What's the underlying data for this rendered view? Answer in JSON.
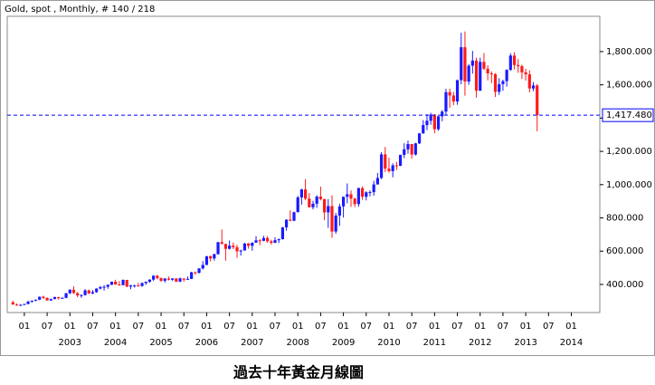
{
  "chart_data": {
    "type": "candlestick",
    "title": "Gold, spot , Monthly, # 140 / 218",
    "caption": "過去十年黃金月線圖",
    "up_color": "#1a1aff",
    "down_color": "#ff1a1a",
    "x": [
      "2001-10",
      "2001-11",
      "2001-12",
      "2002-01",
      "2002-02",
      "2002-03",
      "2002-04",
      "2002-05",
      "2002-06",
      "2002-07",
      "2002-08",
      "2002-09",
      "2002-10",
      "2002-11",
      "2002-12",
      "2003-01",
      "2003-02",
      "2003-03",
      "2003-04",
      "2003-05",
      "2003-06",
      "2003-07",
      "2003-08",
      "2003-09",
      "2003-10",
      "2003-11",
      "2003-12",
      "2004-01",
      "2004-02",
      "2004-03",
      "2004-04",
      "2004-05",
      "2004-06",
      "2004-07",
      "2004-08",
      "2004-09",
      "2004-10",
      "2004-11",
      "2004-12",
      "2005-01",
      "2005-02",
      "2005-03",
      "2005-04",
      "2005-05",
      "2005-06",
      "2005-07",
      "2005-08",
      "2005-09",
      "2005-10",
      "2005-11",
      "2005-12",
      "2006-01",
      "2006-02",
      "2006-03",
      "2006-04",
      "2006-05",
      "2006-06",
      "2006-07",
      "2006-08",
      "2006-09",
      "2006-10",
      "2006-11",
      "2006-12",
      "2007-01",
      "2007-02",
      "2007-03",
      "2007-04",
      "2007-05",
      "2007-06",
      "2007-07",
      "2007-08",
      "2007-09",
      "2007-10",
      "2007-11",
      "2007-12",
      "2008-01",
      "2008-02",
      "2008-03",
      "2008-04",
      "2008-05",
      "2008-06",
      "2008-07",
      "2008-08",
      "2008-09",
      "2008-10",
      "2008-11",
      "2008-12",
      "2009-01",
      "2009-02",
      "2009-03",
      "2009-04",
      "2009-05",
      "2009-06",
      "2009-07",
      "2009-08",
      "2009-09",
      "2009-10",
      "2009-11",
      "2009-12",
      "2010-01",
      "2010-02",
      "2010-03",
      "2010-04",
      "2010-05",
      "2010-06",
      "2010-07",
      "2010-08",
      "2010-09",
      "2010-10",
      "2010-11",
      "2010-12",
      "2011-01",
      "2011-02",
      "2011-03",
      "2011-04",
      "2011-05",
      "2011-06",
      "2011-07",
      "2011-08",
      "2011-09",
      "2011-10",
      "2011-11",
      "2011-12",
      "2012-01",
      "2012-02",
      "2012-03",
      "2012-04",
      "2012-05",
      "2012-06",
      "2012-07",
      "2012-08",
      "2012-09",
      "2012-10",
      "2012-11",
      "2012-12",
      "2013-01",
      "2013-02",
      "2013-03",
      "2013-04"
    ],
    "open": [
      293,
      279,
      275,
      277,
      282,
      296,
      302,
      308,
      326,
      318,
      304,
      312,
      324,
      317,
      319,
      347,
      368,
      348,
      334,
      336,
      364,
      346,
      354,
      375,
      384,
      386,
      398,
      416,
      400,
      396,
      427,
      387,
      394,
      394,
      391,
      408,
      416,
      429,
      452,
      438,
      422,
      435,
      428,
      436,
      417,
      436,
      429,
      433,
      473,
      470,
      496,
      517,
      569,
      556,
      582,
      654,
      643,
      614,
      633,
      624,
      599,
      604,
      646,
      632,
      651,
      665,
      662,
      679,
      659,
      650,
      666,
      672,
      743,
      789,
      783,
      834,
      923,
      971,
      916,
      864,
      885,
      928,
      913,
      833,
      871,
      718,
      814,
      869,
      927,
      942,
      916,
      883,
      979,
      927,
      954,
      955,
      1001,
      1040,
      1182,
      1096,
      1081,
      1116,
      1113,
      1179,
      1212,
      1244,
      1181,
      1248,
      1308,
      1358,
      1384,
      1421,
      1333,
      1411,
      1439,
      1556,
      1536,
      1500,
      1628,
      1826,
      1620,
      1715,
      1746,
      1565,
      1738,
      1697,
      1669,
      1664,
      1558,
      1604,
      1622,
      1690,
      1776,
      1719,
      1712,
      1675,
      1663,
      1578,
      1596
    ],
    "high": [
      301,
      285,
      282,
      284,
      303,
      304,
      309,
      327,
      332,
      323,
      315,
      326,
      325,
      323,
      349,
      372,
      389,
      353,
      340,
      372,
      369,
      366,
      377,
      391,
      396,
      400,
      417,
      428,
      420,
      430,
      428,
      397,
      398,
      410,
      412,
      418,
      431,
      456,
      457,
      441,
      438,
      447,
      437,
      437,
      442,
      437,
      448,
      476,
      478,
      498,
      540,
      572,
      574,
      585,
      656,
      730,
      645,
      664,
      652,
      638,
      609,
      650,
      649,
      652,
      690,
      672,
      693,
      690,
      669,
      684,
      676,
      745,
      792,
      845,
      838,
      933,
      975,
      1033,
      950,
      903,
      936,
      988,
      915,
      913,
      936,
      830,
      885,
      928,
      1007,
      965,
      921,
      982,
      989,
      960,
      966,
      1023,
      1070,
      1195,
      1227,
      1162,
      1128,
      1138,
      1180,
      1249,
      1265,
      1245,
      1251,
      1310,
      1388,
      1424,
      1432,
      1424,
      1412,
      1448,
      1576,
      1577,
      1557,
      1632,
      1913,
      1921,
      1725,
      1804,
      1764,
      1764,
      1791,
      1718,
      1681,
      1670,
      1640,
      1631,
      1693,
      1790,
      1796,
      1755,
      1722,
      1696,
      1687,
      1617,
      1605
    ],
    "low": [
      278,
      272,
      271,
      276,
      281,
      290,
      299,
      306,
      314,
      302,
      301,
      311,
      309,
      315,
      317,
      342,
      343,
      323,
      320,
      333,
      342,
      341,
      349,
      370,
      363,
      374,
      396,
      398,
      392,
      394,
      383,
      371,
      381,
      386,
      385,
      397,
      410,
      421,
      430,
      416,
      411,
      424,
      421,
      414,
      414,
      416,
      427,
      432,
      458,
      465,
      490,
      516,
      538,
      543,
      579,
      642,
      543,
      610,
      612,
      560,
      573,
      603,
      615,
      603,
      650,
      636,
      660,
      651,
      640,
      649,
      649,
      670,
      722,
      780,
      780,
      834,
      880,
      906,
      863,
      851,
      860,
      905,
      786,
      740,
      681,
      705,
      752,
      802,
      888,
      866,
      865,
      867,
      908,
      905,
      930,
      933,
      1001,
      1033,
      1075,
      1072,
      1044,
      1088,
      1112,
      1159,
      1186,
      1156,
      1175,
      1244,
      1306,
      1328,
      1360,
      1308,
      1324,
      1381,
      1419,
      1462,
      1478,
      1480,
      1603,
      1535,
      1600,
      1667,
      1523,
      1563,
      1688,
      1627,
      1610,
      1527,
      1540,
      1564,
      1589,
      1684,
      1692,
      1672,
      1635,
      1626,
      1555,
      1562,
      1321
    ],
    "close": [
      279,
      275,
      277,
      282,
      296,
      302,
      308,
      326,
      318,
      304,
      312,
      324,
      317,
      319,
      347,
      368,
      348,
      334,
      336,
      364,
      346,
      354,
      375,
      384,
      386,
      398,
      416,
      400,
      396,
      427,
      387,
      394,
      394,
      391,
      408,
      416,
      429,
      452,
      438,
      422,
      435,
      428,
      436,
      417,
      436,
      429,
      433,
      473,
      470,
      496,
      517,
      569,
      556,
      582,
      654,
      643,
      614,
      633,
      624,
      599,
      604,
      646,
      632,
      651,
      665,
      662,
      679,
      659,
      650,
      666,
      672,
      743,
      789,
      783,
      834,
      923,
      971,
      916,
      864,
      885,
      928,
      913,
      833,
      871,
      718,
      814,
      869,
      927,
      942,
      916,
      883,
      979,
      927,
      954,
      955,
      1001,
      1040,
      1182,
      1096,
      1081,
      1116,
      1113,
      1179,
      1212,
      1244,
      1181,
      1248,
      1308,
      1358,
      1384,
      1421,
      1333,
      1411,
      1439,
      1556,
      1536,
      1500,
      1628,
      1826,
      1620,
      1715,
      1746,
      1565,
      1738,
      1697,
      1669,
      1664,
      1558,
      1604,
      1622,
      1690,
      1776,
      1719,
      1712,
      1675,
      1663,
      1578,
      1596,
      1417.48
    ],
    "last_price": {
      "value": 1417.48,
      "label": "1,417.480",
      "color": "#0000ff"
    },
    "xlim": [
      "2001-09",
      "2014-08"
    ],
    "xticks": [
      {
        "value": "2002-01",
        "label": "01"
      },
      {
        "value": "2002-07",
        "label": "07"
      },
      {
        "value": "2003-01",
        "label": "01"
      },
      {
        "value": "2003-07",
        "label": "07"
      },
      {
        "value": "2004-01",
        "label": "01"
      },
      {
        "value": "2004-07",
        "label": "07"
      },
      {
        "value": "2005-01",
        "label": "01"
      },
      {
        "value": "2005-07",
        "label": "07"
      },
      {
        "value": "2006-01",
        "label": "01"
      },
      {
        "value": "2006-07",
        "label": "07"
      },
      {
        "value": "2007-01",
        "label": "01"
      },
      {
        "value": "2007-07",
        "label": "07"
      },
      {
        "value": "2008-01",
        "label": "01"
      },
      {
        "value": "2008-07",
        "label": "07"
      },
      {
        "value": "2009-01",
        "label": "01"
      },
      {
        "value": "2009-07",
        "label": "07"
      },
      {
        "value": "2010-01",
        "label": "01"
      },
      {
        "value": "2010-07",
        "label": "07"
      },
      {
        "value": "2011-01",
        "label": "01"
      },
      {
        "value": "2011-07",
        "label": "07"
      },
      {
        "value": "2012-01",
        "label": "01"
      },
      {
        "value": "2012-07",
        "label": "07"
      },
      {
        "value": "2013-01",
        "label": "01"
      },
      {
        "value": "2013-07",
        "label": "07"
      },
      {
        "value": "2014-01",
        "label": "01"
      }
    ],
    "year_ticks": [
      {
        "value": "2003-01",
        "label": "2003"
      },
      {
        "value": "2004-01",
        "label": "2004"
      },
      {
        "value": "2005-01",
        "label": "2005"
      },
      {
        "value": "2006-01",
        "label": "2006"
      },
      {
        "value": "2007-01",
        "label": "2007"
      },
      {
        "value": "2008-01",
        "label": "2008"
      },
      {
        "value": "2009-01",
        "label": "2009"
      },
      {
        "value": "2010-01",
        "label": "2010"
      },
      {
        "value": "2011-01",
        "label": "2011"
      },
      {
        "value": "2012-01",
        "label": "2012"
      },
      {
        "value": "2013-01",
        "label": "2013"
      },
      {
        "value": "2014-01",
        "label": "2014"
      }
    ],
    "ylim": [
      231,
      2012
    ],
    "yticks": [
      {
        "value": 400,
        "label": "400.000"
      },
      {
        "value": 600,
        "label": "600.000"
      },
      {
        "value": 800,
        "label": "800.000"
      },
      {
        "value": 1000,
        "label": "1,000.000"
      },
      {
        "value": 1200,
        "label": "1,200.000"
      },
      {
        "value": 1400,
        "label": "1,400.000"
      },
      {
        "value": 1600,
        "label": "1,600.000"
      },
      {
        "value": 1800,
        "label": "1,800.000"
      }
    ]
  }
}
